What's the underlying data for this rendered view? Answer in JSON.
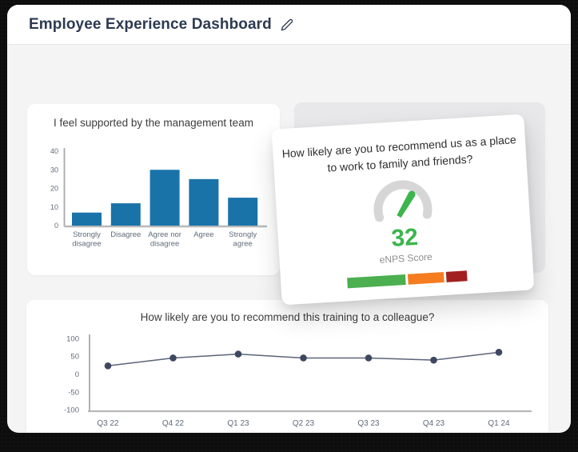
{
  "page": {
    "title": "Employee Experience Dashboard"
  },
  "header": {
    "title": "Employee Experience Dashboard",
    "edit_icon": "pencil"
  },
  "colors": {
    "bar_blue": "#1973A9",
    "needle_green": "#3CB54D",
    "segment_green": "#4CAF50",
    "segment_orange": "#F57D20",
    "segment_red": "#A32020",
    "arc_gray": "#D6D6D6",
    "line_stroke": "#5A6478",
    "marker": "#3D4860",
    "title_navy": "#2D3A52"
  },
  "cards": {
    "bar_chart": {
      "title": "I feel supported by the management team"
    },
    "gauge": {
      "question": "How likely are you to recommend us as a place to work to family and friends?",
      "score": "32",
      "score_label": "eNPS Score",
      "segments": [
        {
          "name": "green-segment",
          "color": "#4CAF50",
          "width_pct": 51
        },
        {
          "name": "orange-segment",
          "color": "#F57D20",
          "width_pct": 31
        },
        {
          "name": "red-segment",
          "color": "#A32020",
          "width_pct": 18
        }
      ]
    },
    "line_chart": {
      "title": "How likely are you to recommend this training to a colleague?"
    }
  },
  "chart_data": [
    {
      "type": "bar",
      "title": "I feel supported by the management team",
      "categories": [
        "Strongly disagree",
        "Disagree",
        "Agree nor disagree",
        "Agree",
        "Strongly agree"
      ],
      "category_lines": [
        [
          "Strongly",
          "disagree"
        ],
        [
          "Disagree"
        ],
        [
          "Agree nor",
          "disagree"
        ],
        [
          "Agree"
        ],
        [
          "Strongly",
          "agree"
        ]
      ],
      "values": [
        7,
        12,
        30,
        25,
        15
      ],
      "xlabel": "",
      "ylabel": "",
      "ylim": [
        0,
        40
      ],
      "yticks": [
        0,
        10,
        20,
        30,
        40
      ],
      "bar_color": "#1973A9",
      "grid": false,
      "legend": false
    },
    {
      "type": "line",
      "title": "How likely are you to recommend this training to a colleague?",
      "categories": [
        "Q3 22",
        "Q4 22",
        "Q1 23",
        "Q2 23",
        "Q3 23",
        "Q4 23",
        "Q1 24"
      ],
      "values": [
        24,
        46,
        57,
        46,
        46,
        40,
        62
      ],
      "xlabel": "",
      "ylabel": "",
      "ylim": [
        -100,
        100
      ],
      "yticks": [
        100,
        50,
        0,
        -50,
        -100
      ],
      "line_color": "#5A6478",
      "marker_color": "#3D4860",
      "grid": false,
      "legend": false
    },
    {
      "type": "gauge",
      "value": 32,
      "label": "eNPS Score",
      "needle_color": "#3CB54D",
      "arc_color": "#D6D6D6"
    }
  ]
}
